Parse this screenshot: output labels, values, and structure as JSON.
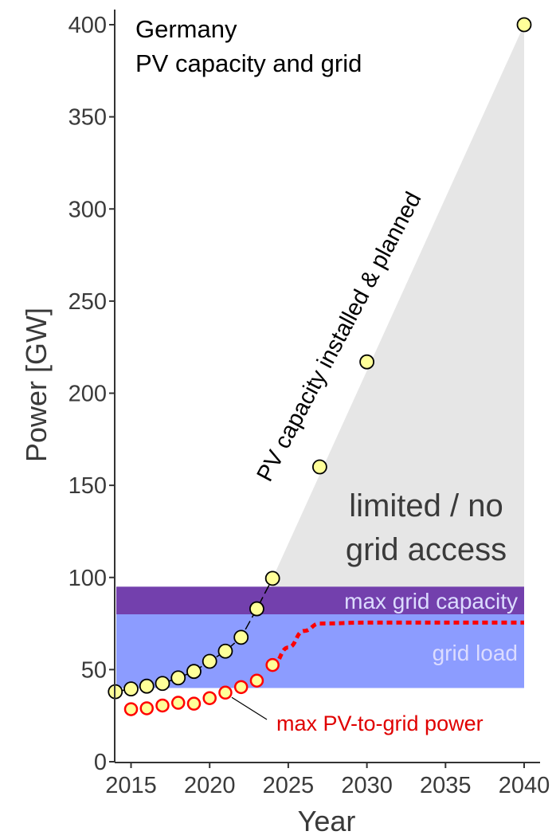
{
  "chart_data": {
    "type": "scatter",
    "title": "Germany",
    "subtitle": "PV capacity and grid",
    "xlabel": "Year",
    "ylabel": "Power [GW]",
    "xlim": [
      2014,
      2041
    ],
    "ylim": [
      0,
      410
    ],
    "x_ticks": [
      2015,
      2020,
      2025,
      2030,
      2035,
      2040
    ],
    "y_ticks": [
      0,
      50,
      100,
      150,
      200,
      250,
      300,
      350,
      400
    ],
    "grid": false,
    "series": [
      {
        "name": "PV capacity installed & planned",
        "points": [
          {
            "x": 2014,
            "y": 38
          },
          {
            "x": 2015,
            "y": 39.5
          },
          {
            "x": 2016,
            "y": 41
          },
          {
            "x": 2017,
            "y": 42.5
          },
          {
            "x": 2018,
            "y": 45.5
          },
          {
            "x": 2019,
            "y": 49
          },
          {
            "x": 2020,
            "y": 54.5
          },
          {
            "x": 2021,
            "y": 60
          },
          {
            "x": 2022,
            "y": 67.5
          },
          {
            "x": 2023,
            "y": 83
          },
          {
            "x": 2024,
            "y": 99.5
          },
          {
            "x": 2027,
            "y": 160
          },
          {
            "x": 2030,
            "y": 217
          },
          {
            "x": 2040,
            "y": 400
          }
        ],
        "marker_fill": "#ffff99",
        "marker_edge": "#000000"
      },
      {
        "name": "max PV-to-grid power",
        "points": [
          {
            "x": 2015,
            "y": 28.5
          },
          {
            "x": 2016,
            "y": 29
          },
          {
            "x": 2017,
            "y": 30.5
          },
          {
            "x": 2018,
            "y": 32
          },
          {
            "x": 2019,
            "y": 31.5
          },
          {
            "x": 2020,
            "y": 34.5
          },
          {
            "x": 2021,
            "y": 37.5
          },
          {
            "x": 2022,
            "y": 40.5
          },
          {
            "x": 2023,
            "y": 44
          },
          {
            "x": 2024,
            "y": 52.5
          }
        ],
        "projection": [
          {
            "x": 2024,
            "y": 52.5
          },
          {
            "x": 2025,
            "y": 62
          },
          {
            "x": 2026,
            "y": 71
          },
          {
            "x": 2027,
            "y": 75
          },
          {
            "x": 2030,
            "y": 75.5
          },
          {
            "x": 2040,
            "y": 75.5
          }
        ],
        "marker_fill": "#ffff99",
        "marker_edge": "#ff0000"
      }
    ],
    "bands": [
      {
        "label": "grid load",
        "y0": 40,
        "y1": 80,
        "x0": 2014,
        "x1": 2040,
        "color": "#8c9cff"
      },
      {
        "label": "max grid capacity",
        "y0": 80,
        "y1": 95,
        "x0": 2014,
        "x1": 2040,
        "color": "#7340ad"
      }
    ],
    "regions": [
      {
        "label_lines": [
          "limited / no",
          "grid access"
        ],
        "color": "#e6e6e6"
      }
    ],
    "annotations": [
      {
        "text": "PV capacity installed & planned"
      },
      {
        "text": "max PV-to-grid power",
        "color": "#e00000"
      }
    ]
  }
}
